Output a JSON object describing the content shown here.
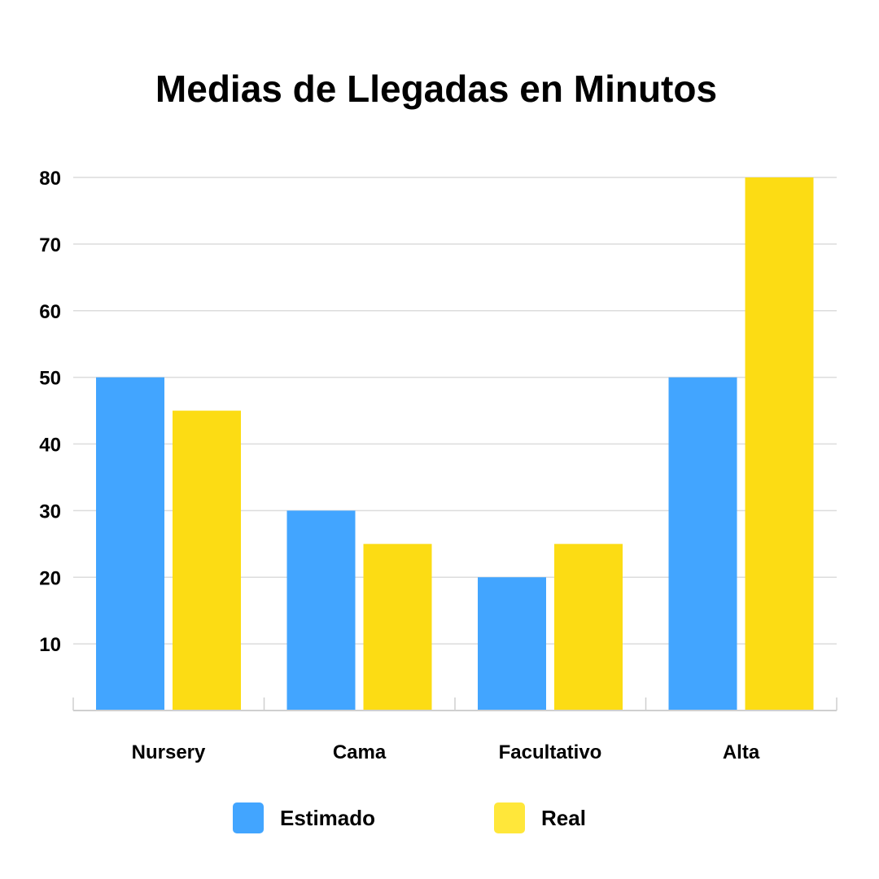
{
  "chart_data": {
    "type": "bar",
    "title": "Medias de Llegadas en Minutos",
    "categories": [
      "Nursery",
      "Cama",
      "Facultativo",
      "Alta"
    ],
    "series": [
      {
        "name": "Estimado",
        "values": [
          50,
          30,
          20,
          50
        ],
        "color": "#42A5FF"
      },
      {
        "name": "Real",
        "values": [
          45,
          25,
          25,
          80
        ],
        "color": "#FCDC14"
      }
    ],
    "ylim": [
      0,
      80
    ],
    "yticks": [
      10,
      20,
      30,
      40,
      50,
      60,
      70,
      80
    ],
    "grid": true,
    "legend": "bottom",
    "legend_colors": {
      "Estimado": "#42A5FF",
      "Real": "#FFE73A"
    }
  }
}
